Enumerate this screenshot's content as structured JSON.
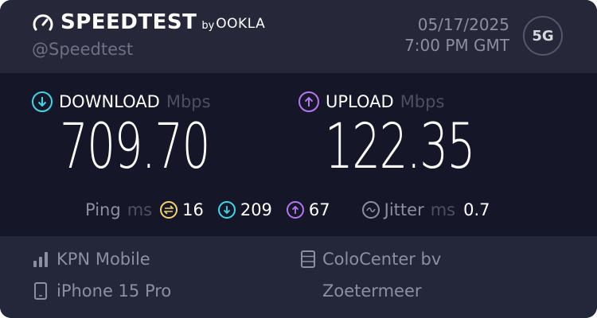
{
  "header": {
    "brand": "SPEEDTEST",
    "by": "by",
    "ookla": "OOKLA",
    "handle": "@Speedtest",
    "date": "05/17/2025",
    "time": "7:00 PM GMT",
    "network_badge": "5G"
  },
  "download": {
    "label": "DOWNLOAD",
    "unit": "Mbps",
    "value": "709.70",
    "color": "#3bd8e8"
  },
  "upload": {
    "label": "UPLOAD",
    "unit": "Mbps",
    "value": "122.35",
    "color": "#b477f0"
  },
  "ping": {
    "label": "Ping",
    "unit": "ms",
    "idle": "16",
    "download": "209",
    "upload": "67",
    "idle_color": "#f2d46b"
  },
  "jitter": {
    "label": "Jitter",
    "unit": "ms",
    "value": "0.7"
  },
  "provider": {
    "isp": "KPN Mobile",
    "device": "iPhone 15 Pro",
    "server": "ColoCenter bv",
    "location": "Zoetermeer"
  }
}
